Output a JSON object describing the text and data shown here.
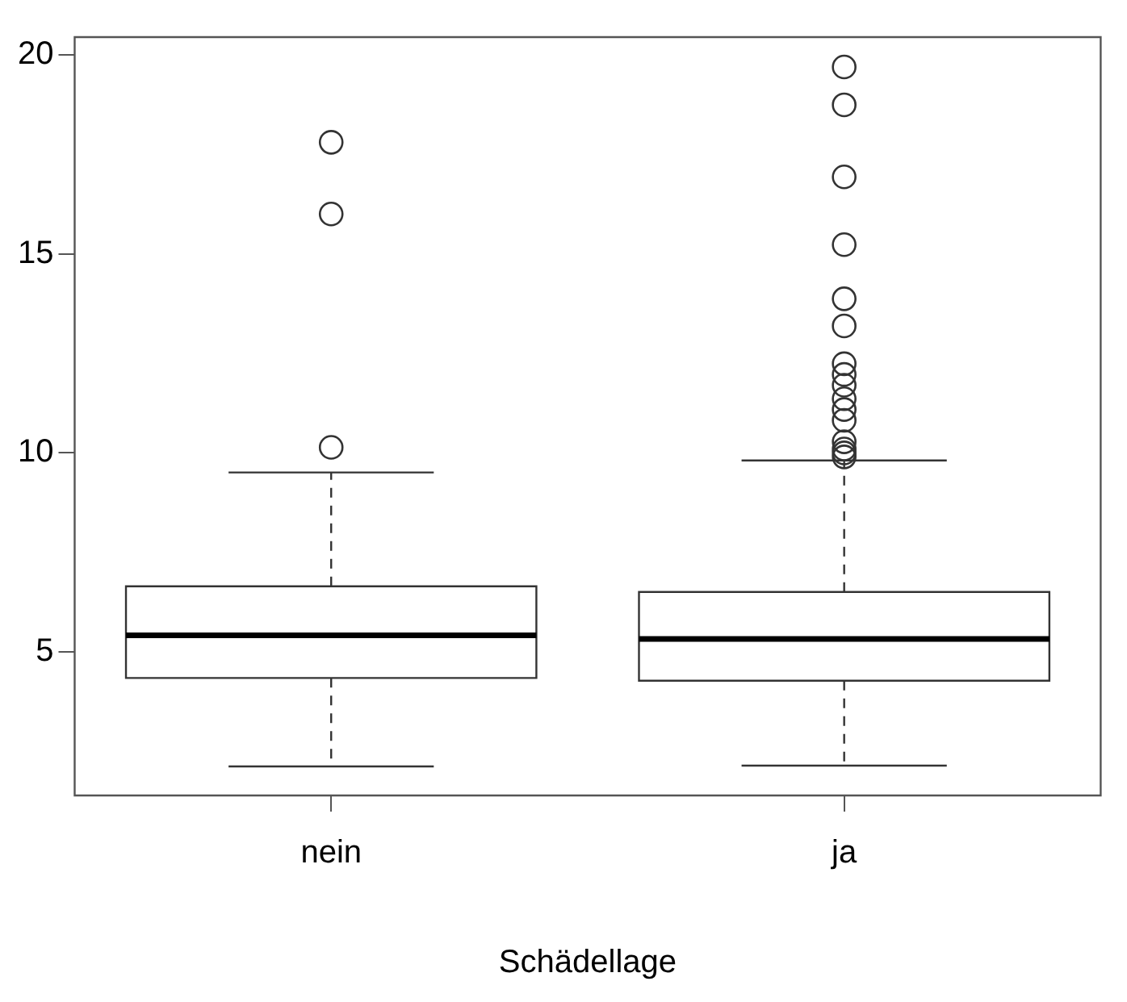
{
  "chart_data": {
    "type": "box",
    "xlabel": "Schädellage",
    "categories": [
      "nein",
      "ja"
    ],
    "ylim": [
      1.4,
      20.44
    ],
    "yticks": [
      5,
      10,
      15,
      20
    ],
    "grid": false,
    "legend": false,
    "boxes": [
      {
        "low": 2.13,
        "q1": 4.35,
        "median": 5.42,
        "q3": 6.65,
        "high": 9.51,
        "outliers": [
          10.14,
          16.0,
          17.8
        ]
      },
      {
        "low": 2.15,
        "q1": 4.28,
        "median": 5.33,
        "q3": 6.51,
        "high": 9.81,
        "outliers": [
          9.9,
          10.0,
          10.1,
          10.28,
          10.82,
          11.09,
          11.36,
          11.7,
          11.97,
          12.24,
          13.19,
          13.87,
          15.23,
          16.93,
          18.74,
          19.69
        ]
      }
    ]
  }
}
